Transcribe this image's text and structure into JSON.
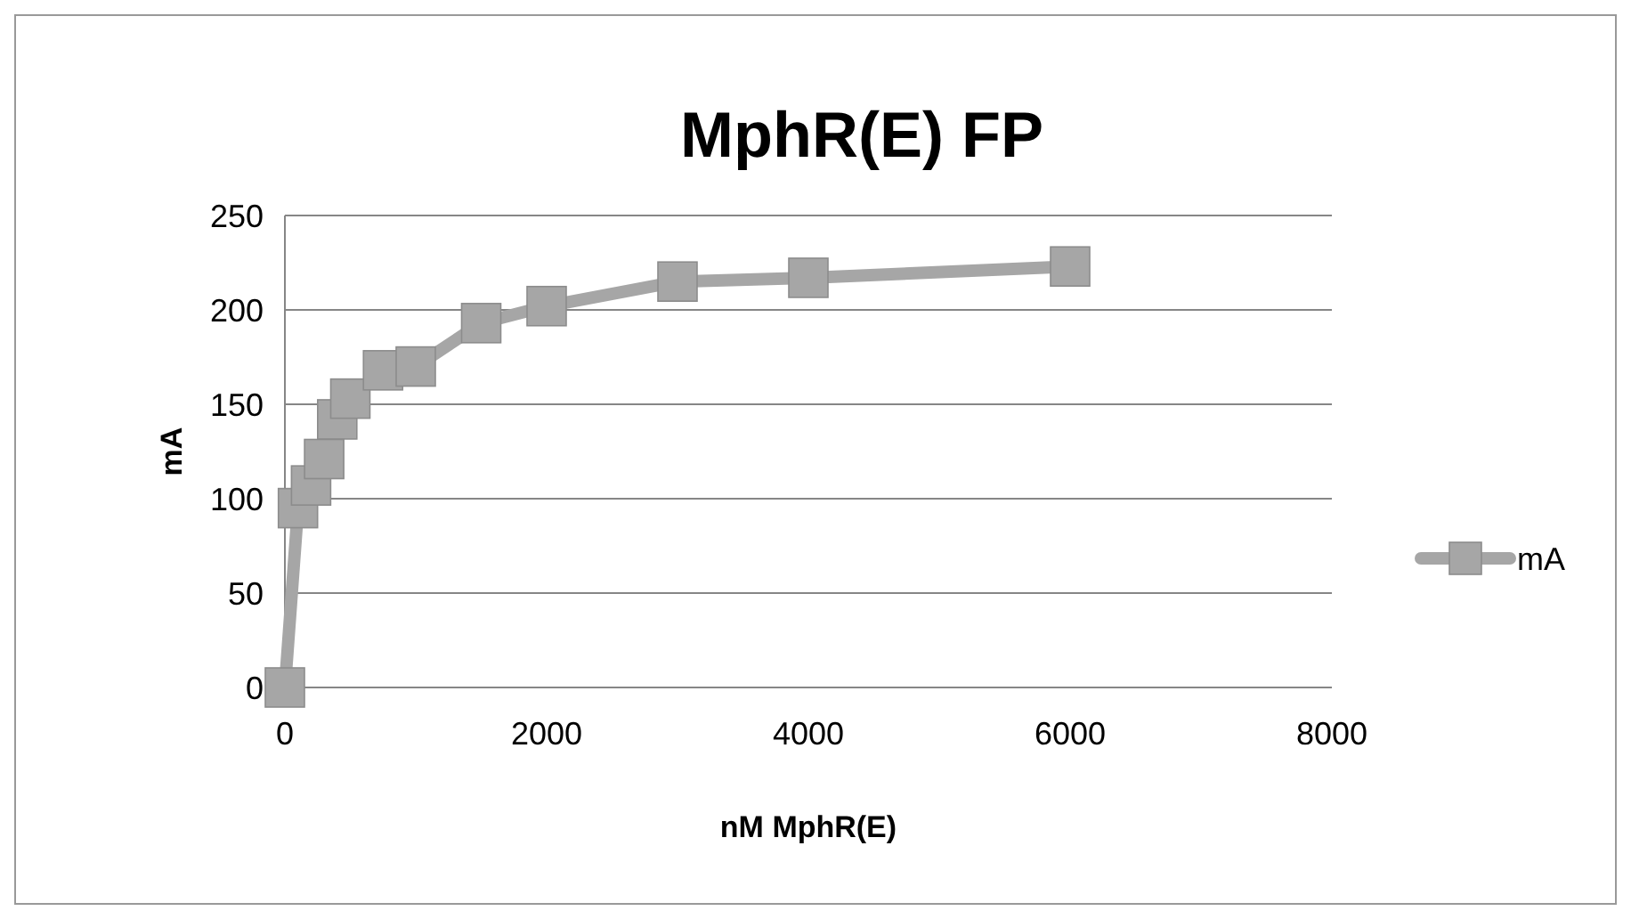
{
  "chart_data": {
    "type": "line",
    "title": "MphR(E) FP",
    "xlabel": "nM MphR(E)",
    "ylabel": "mA",
    "x": [
      0,
      100,
      200,
      300,
      400,
      500,
      750,
      1000,
      1500,
      2000,
      3000,
      4000,
      6000
    ],
    "series": [
      {
        "name": "mA",
        "color": "#a6a6a6",
        "values": [
          0,
          95,
          107,
          121,
          142,
          153,
          168,
          170,
          193,
          202,
          215,
          217,
          223
        ]
      }
    ],
    "xlim": [
      0,
      8000
    ],
    "xticks": [
      0,
      2000,
      4000,
      6000,
      8000
    ],
    "ylim": [
      0,
      250
    ],
    "yticks": [
      0,
      50,
      100,
      150,
      200,
      250
    ],
    "grid": "y",
    "legend": "right",
    "marker": "square",
    "line_style": "solid"
  }
}
